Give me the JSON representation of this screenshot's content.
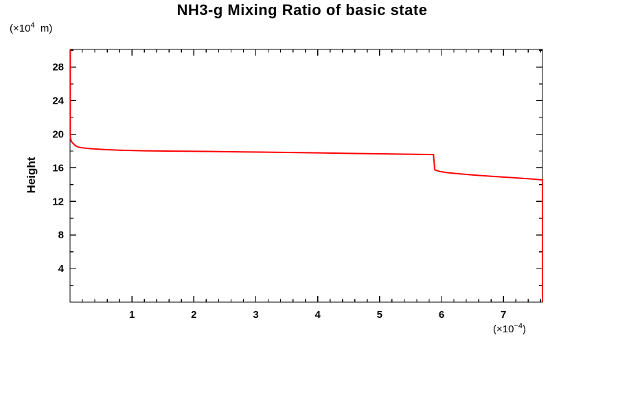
{
  "labels": {
    "y_unit": {
      "prefix": "(×10",
      "sup": "4",
      "suffix": "  m)"
    },
    "x_unit": {
      "prefix": "(×10",
      "sup": "−4",
      "suffix": ")"
    }
  },
  "chart_data": {
    "type": "line",
    "title": "NH3-g Mixing Ratio of basic state",
    "xlabel": "",
    "ylabel": "Height",
    "x_unit": "×10⁻⁴",
    "y_unit": "×10⁴ m",
    "xlim": [
      0,
      7.63
    ],
    "ylim": [
      0,
      30.1
    ],
    "x_major_ticks": [
      1,
      2,
      3,
      4,
      5,
      6,
      7
    ],
    "x_minor_step": 0.2,
    "y_major_ticks": [
      4,
      8,
      12,
      16,
      20,
      24,
      28
    ],
    "y_minor_step": 2,
    "grid": false,
    "legend": "none",
    "frame_color": "#000000",
    "line_color": "#ff0000",
    "line_width": 2,
    "series": [
      {
        "name": "NH3-g mixing ratio vertical profile",
        "points": [
          [
            0.003,
            30.1
          ],
          [
            0.003,
            19.7
          ],
          [
            0.02,
            19.15
          ],
          [
            0.05,
            18.9
          ],
          [
            0.09,
            18.62
          ],
          [
            0.14,
            18.46
          ],
          [
            0.22,
            18.36
          ],
          [
            0.35,
            18.27
          ],
          [
            0.55,
            18.18
          ],
          [
            0.8,
            18.1
          ],
          [
            1.2,
            18.03
          ],
          [
            1.7,
            17.99
          ],
          [
            2.2,
            17.95
          ],
          [
            2.8,
            17.9
          ],
          [
            3.4,
            17.84
          ],
          [
            4.0,
            17.78
          ],
          [
            4.6,
            17.71
          ],
          [
            5.2,
            17.65
          ],
          [
            5.6,
            17.61
          ],
          [
            5.87,
            17.58
          ],
          [
            5.89,
            15.75
          ],
          [
            5.98,
            15.55
          ],
          [
            6.1,
            15.42
          ],
          [
            6.3,
            15.27
          ],
          [
            6.55,
            15.12
          ],
          [
            6.85,
            14.97
          ],
          [
            7.15,
            14.82
          ],
          [
            7.4,
            14.7
          ],
          [
            7.63,
            14.56
          ],
          [
            7.63,
            0.0
          ]
        ]
      }
    ]
  }
}
